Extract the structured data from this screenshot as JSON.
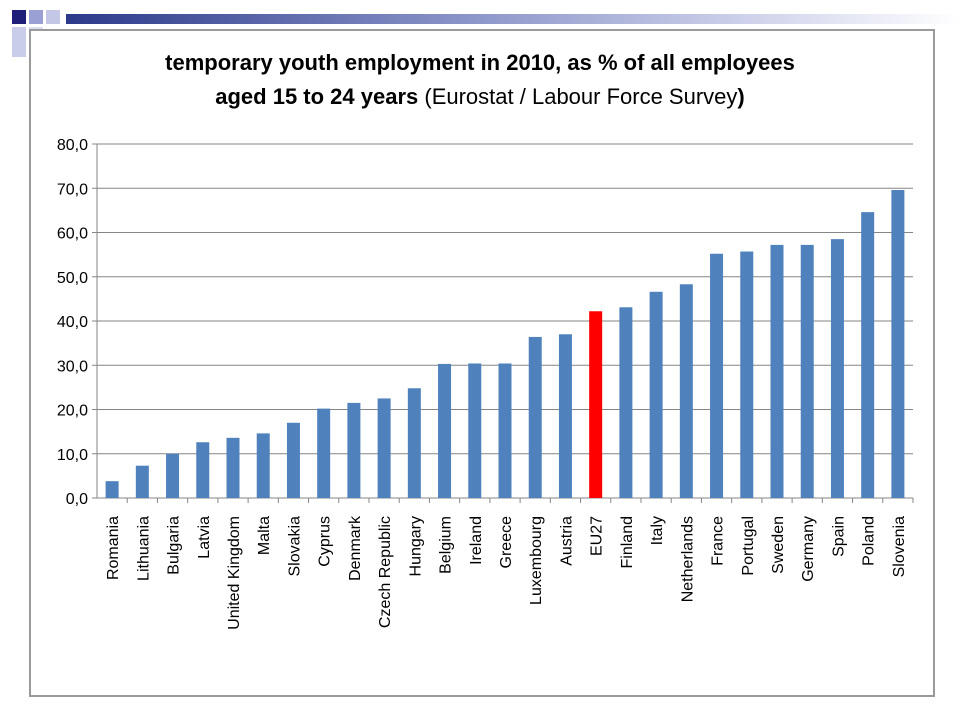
{
  "chart_data": {
    "type": "bar",
    "title": "temporary youth employment in 2010, as % of all employees",
    "title_line2_bold": "aged 15 to 24 years ",
    "title_line2_normal": "(Eurostat / Labour Force Survey",
    "title_line2_bold_end": ")",
    "categories": [
      "Romania",
      "Lithuania",
      "Bulgaria",
      "Latvia",
      "United Kingdom",
      "Malta",
      "Slovakia",
      "Cyprus",
      "Denmark",
      "Czech Republic",
      "Hungary",
      "Belgium",
      "Ireland",
      "Greece",
      "Luxembourg",
      "Austria",
      "EU27",
      "Finland",
      "Italy",
      "Netherlands",
      "France",
      "Portugal",
      "Sweden",
      "Germany",
      "Spain",
      "Poland",
      "Slovenia"
    ],
    "values": [
      3.8,
      7.3,
      10.0,
      12.6,
      13.6,
      14.6,
      17.0,
      20.2,
      21.5,
      22.5,
      24.8,
      30.3,
      30.4,
      30.4,
      36.4,
      37.0,
      42.2,
      43.1,
      46.6,
      48.3,
      55.2,
      55.7,
      57.2,
      57.2,
      58.5,
      64.6,
      69.6
    ],
    "ylim": [
      0,
      80
    ],
    "yticks": [
      "0,0",
      "10,0",
      "20,0",
      "30,0",
      "40,0",
      "50,0",
      "60,0",
      "70,0",
      "80,0"
    ],
    "grid": true,
    "colors": {
      "bar": "#4f81bd",
      "highlight": "#ff0000",
      "highlight_category": "EU27",
      "grid": "#868686"
    }
  }
}
